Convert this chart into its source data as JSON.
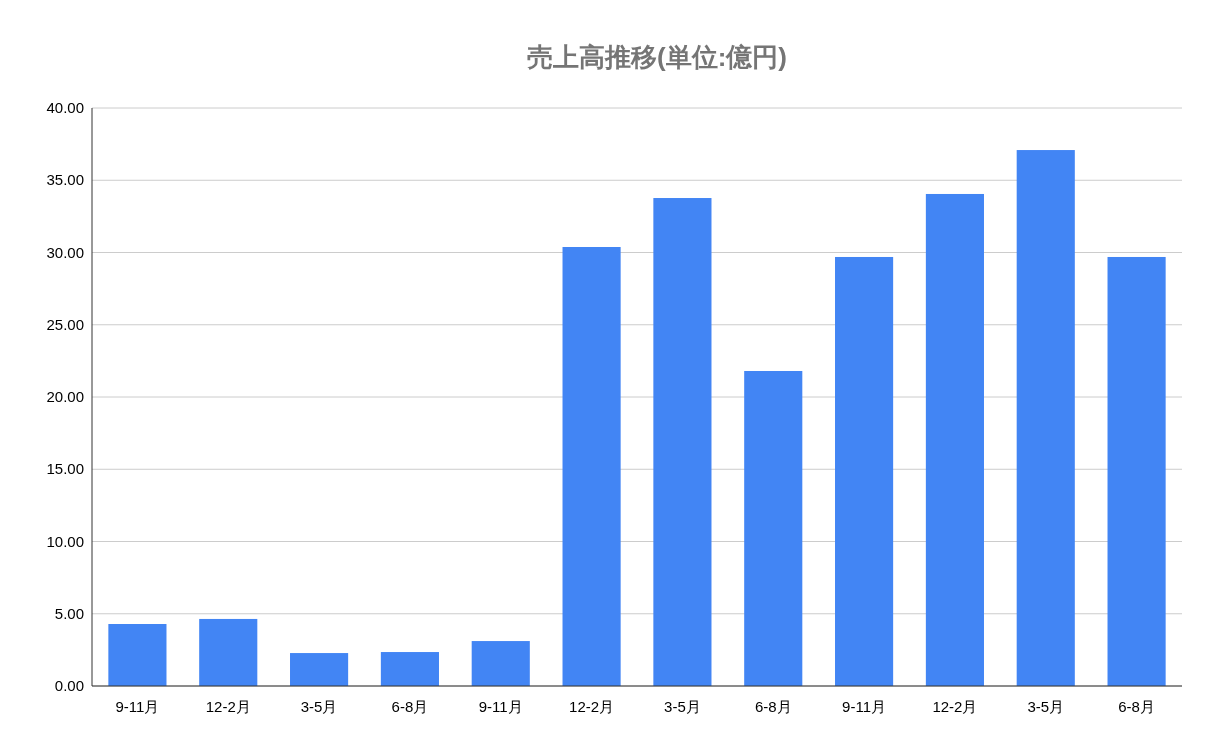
{
  "chart_data": {
    "type": "bar",
    "title": "売上高推移(単位:億円)",
    "categories": [
      "9-11月",
      "12-2月",
      "3-5月",
      "6-8月",
      "9-11月",
      "12-2月",
      "3-5月",
      "6-8月",
      "9-11月",
      "12-2月",
      "3-5月",
      "6-8月"
    ],
    "values": [
      4.29,
      4.64,
      2.28,
      2.35,
      3.11,
      30.38,
      33.77,
      21.8,
      29.69,
      34.05,
      37.09,
      29.69
    ],
    "color": "#4285f4",
    "ylim": [
      0,
      40
    ],
    "yticks": [
      {
        "value": 0,
        "label": "0.00"
      },
      {
        "value": 5,
        "label": "5.00"
      },
      {
        "value": 10,
        "label": "10.00"
      },
      {
        "value": 15,
        "label": "15.00"
      },
      {
        "value": 20,
        "label": "20.00"
      },
      {
        "value": 25,
        "label": "25.00"
      },
      {
        "value": 30,
        "label": "30.00"
      },
      {
        "value": 35,
        "label": "35.00"
      },
      {
        "value": 40,
        "label": "40.00"
      }
    ],
    "grid": "y"
  }
}
